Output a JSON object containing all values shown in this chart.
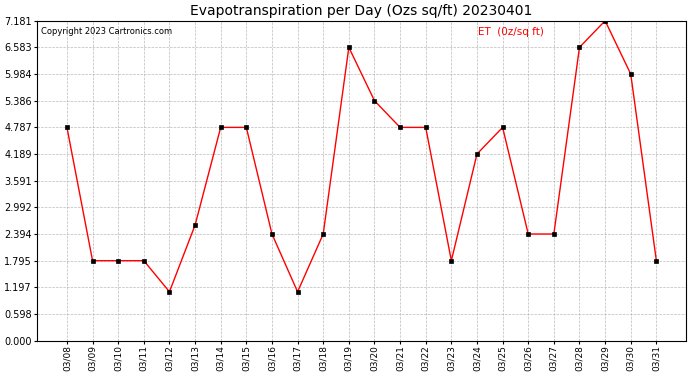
{
  "title": "Evapotranspiration per Day (Ozs sq/ft) 20230401",
  "copyright": "Copyright 2023 Cartronics.com",
  "legend_label": "ET  (0z/sq ft)",
  "dates": [
    "03/08",
    "03/09",
    "03/10",
    "03/11",
    "03/12",
    "03/13",
    "03/14",
    "03/15",
    "03/16",
    "03/17",
    "03/18",
    "03/19",
    "03/20",
    "03/21",
    "03/22",
    "03/23",
    "03/24",
    "03/25",
    "03/26",
    "03/27",
    "03/28",
    "03/29",
    "03/30",
    "03/31"
  ],
  "values": [
    4.787,
    1.795,
    1.795,
    1.795,
    1.097,
    2.594,
    4.787,
    4.787,
    2.394,
    1.097,
    2.394,
    6.583,
    5.386,
    4.787,
    4.787,
    1.795,
    4.189,
    4.787,
    2.394,
    2.394,
    6.583,
    7.181,
    5.984,
    1.795
  ],
  "line_color": "#FF0000",
  "marker_color": "#000000",
  "background_color": "#FFFFFF",
  "grid_color": "#AAAAAA",
  "title_color": "#000000",
  "copyright_color": "#000000",
  "legend_color": "#FF0000",
  "ylim": [
    0.0,
    7.181
  ],
  "yticks": [
    0.0,
    0.598,
    1.197,
    1.795,
    2.394,
    2.992,
    3.591,
    4.189,
    4.787,
    5.386,
    5.984,
    6.583,
    7.181
  ],
  "figwidth": 6.9,
  "figheight": 3.75,
  "dpi": 100
}
